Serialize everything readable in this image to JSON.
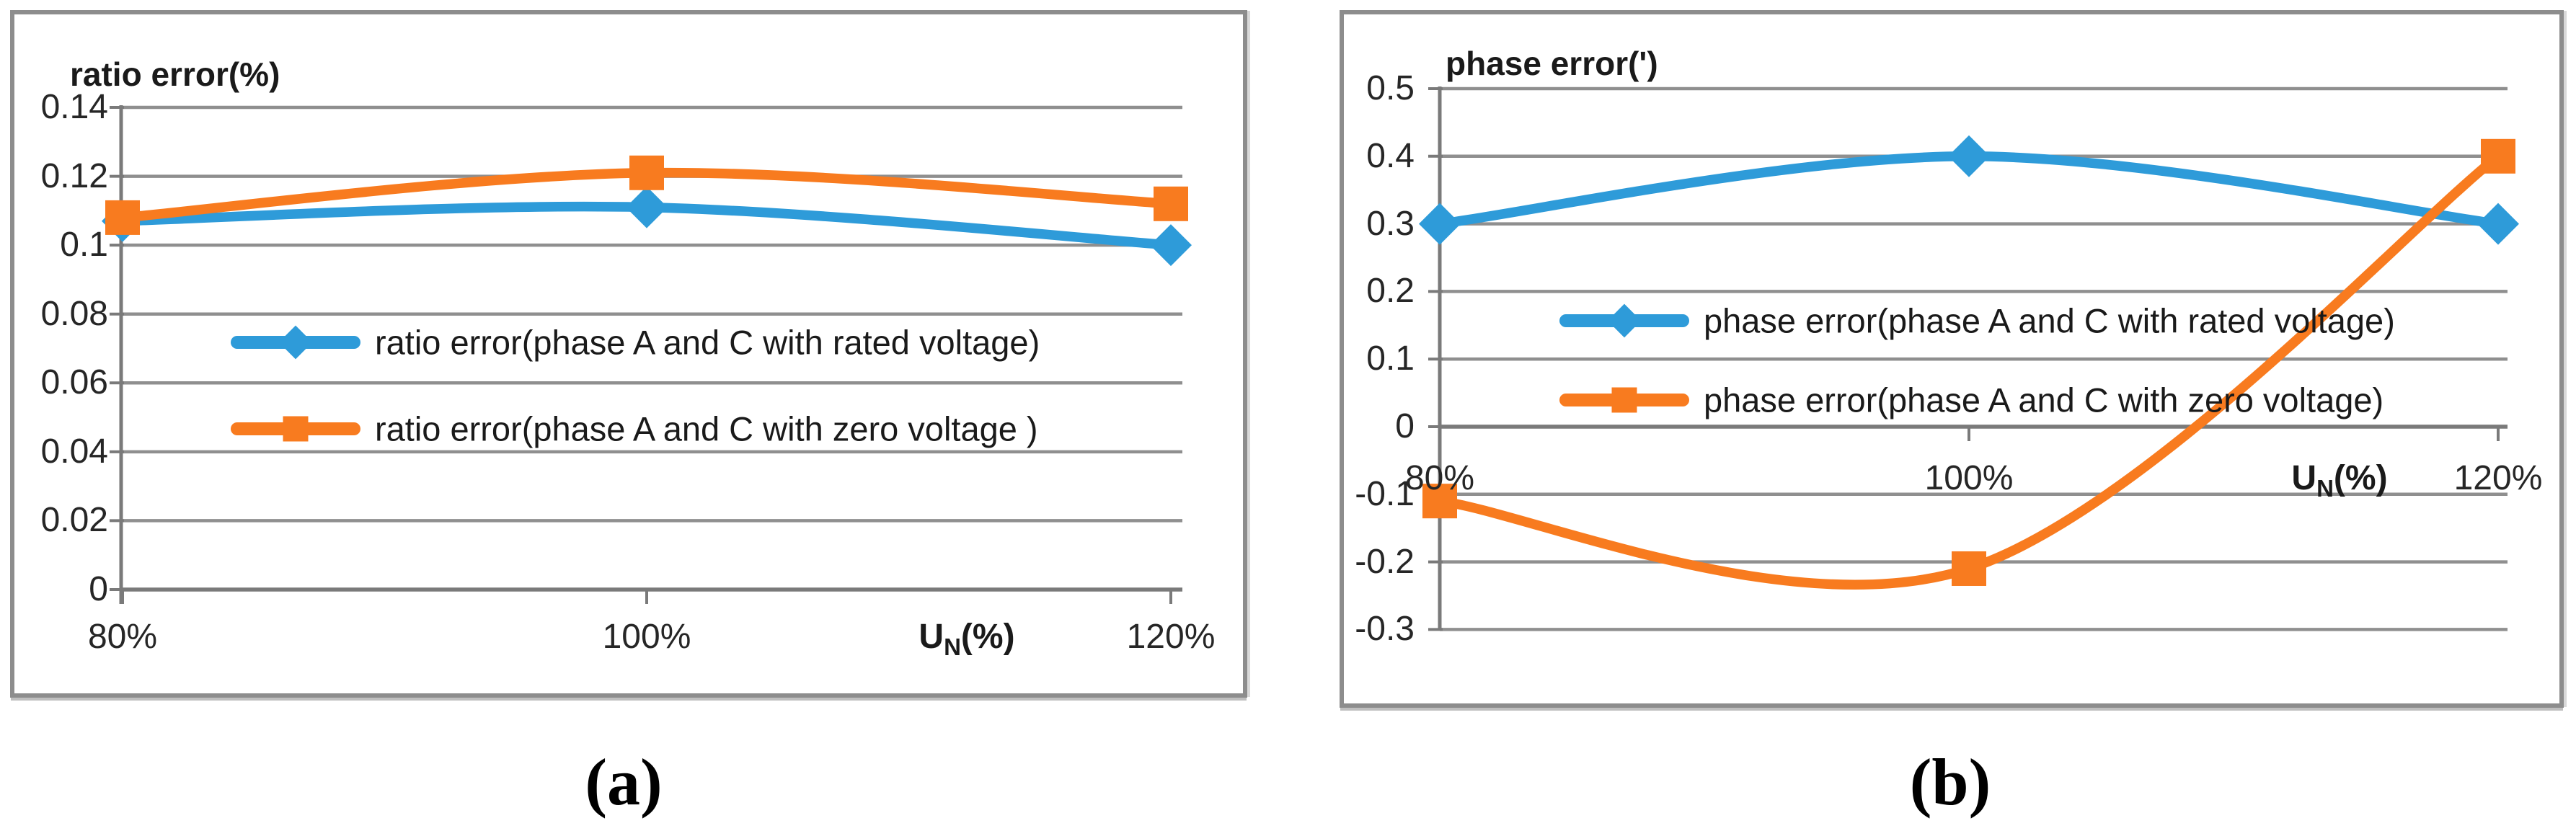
{
  "figure": {
    "captions": [
      "(a)",
      "(b)"
    ]
  },
  "colors": {
    "series_blue": "#2E9BD9",
    "series_orange": "#F87B1F",
    "gridline": "#8F8F8F",
    "axis": "#7A7A7A",
    "frame_border": "#8D8D8D"
  },
  "chart_data": [
    {
      "type": "line",
      "panel": "a",
      "title": "ratio error(%)",
      "xlabel": {
        "pre": "U",
        "sub": "N",
        "post": "(%)"
      },
      "categories": [
        "80%",
        "100%",
        "120%"
      ],
      "ylim": [
        0,
        0.14
      ],
      "ytick_labels": [
        "0.14",
        "0.12",
        "0.1",
        "0.08",
        "0.06",
        "0.04",
        "0.02",
        "0"
      ],
      "grid": true,
      "legend_position": "inside-center-left",
      "line_style": "smooth",
      "series": [
        {
          "name": "ratio error(phase A and C with rated voltage)",
          "marker": "diamond",
          "color": "#2E9BD9",
          "values": [
            0.107,
            0.111,
            0.1
          ]
        },
        {
          "name": "ratio error(phase A and C with zero voltage )",
          "marker": "square",
          "color": "#F87B1F",
          "values": [
            0.108,
            0.121,
            0.112
          ]
        }
      ]
    },
    {
      "type": "line",
      "panel": "b",
      "title": "phase error(')",
      "xlabel": {
        "pre": "U",
        "sub": "N",
        "post": "(%)"
      },
      "categories": [
        "80%",
        "100%",
        "120%"
      ],
      "ylim": [
        -0.3,
        0.5
      ],
      "ytick_labels": [
        "0.5",
        "0.4",
        "0.3",
        "0.2",
        "0.1",
        "0",
        "-0.1",
        "-0.2",
        "-0.3"
      ],
      "grid": true,
      "legend_position": "inside-center",
      "line_style": "smooth",
      "series": [
        {
          "name": "phase error(phase A and C with rated voltage)",
          "marker": "diamond",
          "color": "#2E9BD9",
          "values": [
            0.3,
            0.4,
            0.3
          ]
        },
        {
          "name": "phase error(phase A and C with zero voltage)",
          "marker": "square",
          "color": "#F87B1F",
          "values": [
            -0.11,
            -0.21,
            0.4
          ]
        }
      ]
    }
  ]
}
